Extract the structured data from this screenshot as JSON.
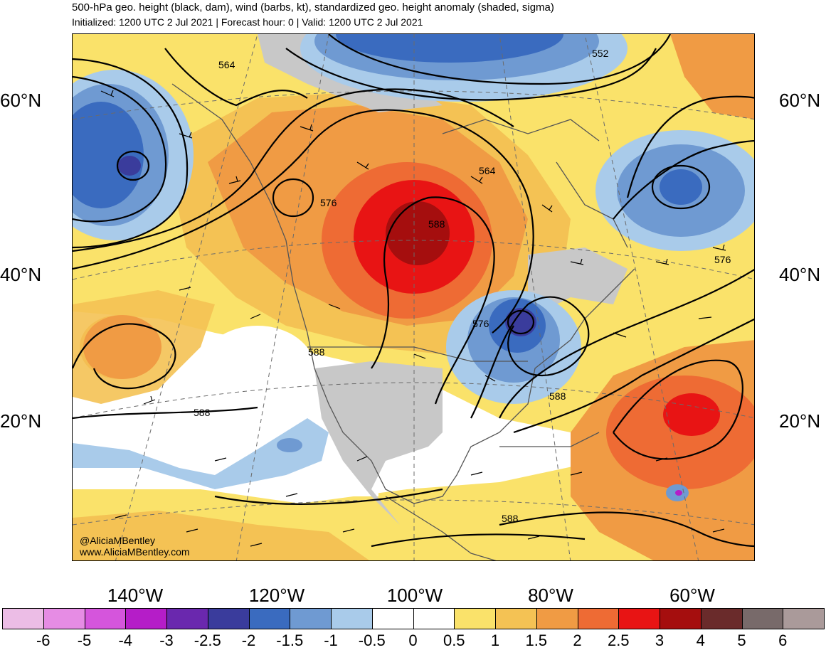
{
  "header": {
    "title": "500-hPa geo. height (black, dam), wind (barbs, kt), standardized geo. height anomaly (shaded, sigma)",
    "subtitle": "Initialized: 1200 UTC 2 Jul 2021 | Forecast hour: 0 | Valid: 1200 UTC 2 Jul 2021"
  },
  "map": {
    "latitude_labels": [
      "60°N",
      "40°N",
      "20°N"
    ],
    "longitude_labels": [
      "140°W",
      "120°W",
      "100°W",
      "80°W",
      "60°W"
    ],
    "contour_labels": [
      "564",
      "552",
      "576",
      "588",
      "564",
      "576",
      "576",
      "588",
      "588",
      "588",
      "588"
    ],
    "credit": {
      "handle": "@AliciaMBentley",
      "website": "www.AliciaMBentley.com"
    }
  },
  "colorbar": {
    "colors": [
      "#ecbde6",
      "#e68ce4",
      "#d555dc",
      "#b51dc8",
      "#6a28ae",
      "#3a3c9c",
      "#3a6bbf",
      "#6f9ad2",
      "#a9cbea",
      "#ffffff",
      "#ffffff",
      "#fae26a",
      "#f4c254",
      "#f09b44",
      "#ee6b34",
      "#e81414",
      "#a50e0e",
      "#6a2b2b",
      "#786a6a",
      "#aa9a9a"
    ],
    "labels": [
      "-6",
      "-5",
      "-4",
      "-3",
      "-2.5",
      "-2",
      "-1.5",
      "-1",
      "-0.5",
      "0",
      "0.5",
      "1",
      "1.5",
      "2",
      "2.5",
      "3",
      "4",
      "5",
      "6"
    ]
  }
}
